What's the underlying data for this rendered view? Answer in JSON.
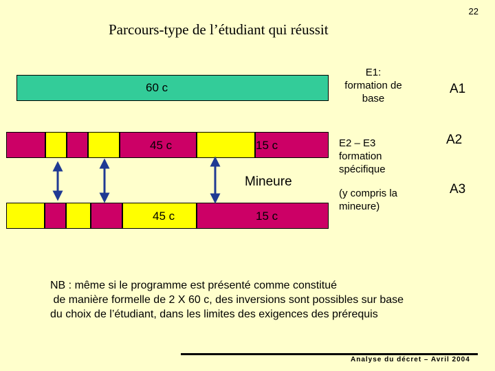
{
  "slide": {
    "page_number": "22",
    "title": "Parcours-type de l’étudiant qui réussit"
  },
  "bars": {
    "row1_label": "60 c",
    "row2_label_a": "45 c",
    "row2_label_b": "15 c",
    "mineure_label": "Mineure",
    "row3_label_a": "45 c",
    "row3_label_b": "15 c"
  },
  "descriptions": {
    "e1_line1": "E1:",
    "e1_line2": "formation de",
    "e1_line3": "base",
    "e2_line1": "E2 – E3",
    "e2_line2": "formation",
    "e2_line3": "spécifique",
    "e2_line4": "(y compris la",
    "e2_line5": "mineure)"
  },
  "years": {
    "a1": "A1",
    "a2": "A2",
    "a3": "A3"
  },
  "note": {
    "line1": "NB : même si le programme est présenté comme constitué",
    "line2": " de manière formelle de 2 X 60 c, des inversions sont possibles sur base",
    "line3": "du choix de l’étudiant, dans les limites des exigences des prérequis"
  },
  "footer": {
    "text": "Analyse du décret – Avril 2004"
  },
  "colors": {
    "background": "#FFFFCC",
    "green": "#33CC99",
    "yellow": "#FFFF00",
    "magenta": "#CC0066",
    "arrow": "#1F3A93"
  }
}
